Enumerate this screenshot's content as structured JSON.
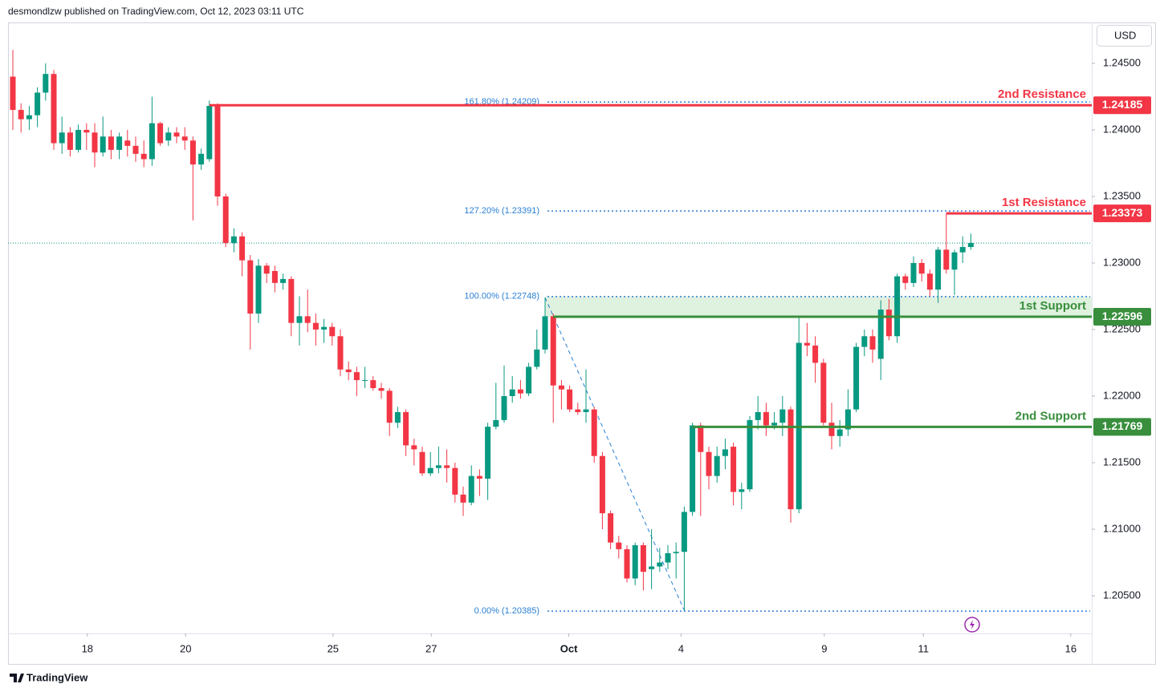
{
  "header": {
    "publisher": "desmondlzw published on TradingView.com, Oct 12, 2023 03:11 UTC",
    "brand": "TradingView"
  },
  "chart_data": {
    "type": "candlestick",
    "currency": "USD",
    "up_color": "#089981",
    "down_color": "#f23645",
    "ylim": [
      1.20217,
      1.24807
    ],
    "yticks": [
      {
        "value": 1.205,
        "label": "1.20500"
      },
      {
        "value": 1.21,
        "label": "1.21000"
      },
      {
        "value": 1.215,
        "label": "1.21500"
      },
      {
        "value": 1.22,
        "label": "1.22000"
      },
      {
        "value": 1.225,
        "label": "1.22500"
      },
      {
        "value": 1.23,
        "label": "1.23000"
      },
      {
        "value": 1.235,
        "label": "1.23500"
      },
      {
        "value": 1.24,
        "label": "1.24000"
      },
      {
        "value": 1.245,
        "label": "1.24500"
      }
    ],
    "xticks": [
      {
        "value": 9.1,
        "label": "18"
      },
      {
        "value": 21.1,
        "label": "20"
      },
      {
        "value": 39.1,
        "label": "25"
      },
      {
        "value": 51.1,
        "label": "27"
      },
      {
        "value": 67.9,
        "label": "Oct"
      },
      {
        "value": 81.6,
        "label": "4"
      },
      {
        "value": 99.1,
        "label": "9"
      },
      {
        "value": 111.2,
        "label": "11"
      },
      {
        "value": 129.2,
        "label": "16"
      }
    ],
    "open": [
      1.244,
      1.2415,
      1.2408,
      1.2411,
      1.2428,
      1.2442,
      1.239,
      1.2398,
      1.2385,
      1.24,
      1.2398,
      1.2383,
      1.2395,
      1.2385,
      1.2392,
      1.2388,
      1.2382,
      1.2378,
      1.2405,
      1.2392,
      1.2398,
      1.2395,
      1.2392,
      1.2374,
      1.2378,
      1.2418,
      1.235,
      1.2315,
      1.232,
      1.2302,
      1.2262,
      1.2298,
      1.2294,
      1.2285,
      1.2288,
      1.2255,
      1.226,
      1.2255,
      1.225,
      1.2252,
      1.2245,
      1.222,
      1.2218,
      1.2212,
      1.2212,
      1.2206,
      1.2204,
      1.218,
      1.2188,
      1.2163,
      1.2158,
      1.2142,
      1.2146,
      1.2148,
      1.2146,
      1.2126,
      1.212,
      1.214,
      1.2138,
      1.2177,
      1.2182,
      1.22,
      1.2205,
      1.2202,
      1.2222,
      1.2235,
      1.226,
      1.2208,
      1.2205,
      1.219,
      1.2188,
      1.219,
      1.2155,
      1.2112,
      1.209,
      1.2085,
      1.2063,
      1.2088,
      1.207,
      1.2072,
      1.2075,
      1.2082,
      1.2083,
      1.2113,
      1.2178,
      1.2158,
      1.214,
      1.2155,
      1.2162,
      1.2128,
      1.213,
      1.2182,
      1.2188,
      1.2178,
      1.218,
      1.219,
      1.2115,
      1.224,
      1.2238,
      1.2225,
      1.218,
      1.217,
      1.2175,
      1.219,
      1.2237,
      1.2245,
      1.2228,
      1.2265,
      1.2245,
      1.229,
      1.2285,
      1.23,
      1.2292,
      1.228,
      1.231,
      1.2295,
      1.2308,
      1.2312
    ],
    "high": [
      1.246,
      1.242,
      1.2418,
      1.2432,
      1.245,
      1.2445,
      1.241,
      1.2402,
      1.2404,
      1.2405,
      1.2405,
      1.241,
      1.24,
      1.2398,
      1.24,
      1.2395,
      1.2392,
      1.2425,
      1.2406,
      1.2402,
      1.2402,
      1.2402,
      1.2395,
      1.2386,
      1.2422,
      1.242,
      1.2352,
      1.2326,
      1.2323,
      1.2306,
      1.2303,
      1.23,
      1.2298,
      1.2292,
      1.229,
      1.2275,
      1.228,
      1.2262,
      1.2258,
      1.2255,
      1.225,
      1.2226,
      1.2222,
      1.2222,
      1.2215,
      1.221,
      1.2206,
      1.2192,
      1.219,
      1.2168,
      1.2162,
      1.2158,
      1.2162,
      1.216,
      1.215,
      1.2132,
      1.2148,
      1.2145,
      1.218,
      1.221,
      1.2223,
      1.2215,
      1.2212,
      1.2225,
      1.225,
      1.2274,
      1.2262,
      1.2212,
      1.2208,
      1.2195,
      1.222,
      1.2192,
      1.2158,
      1.2114,
      1.2095,
      1.2088,
      1.209,
      1.209,
      1.21,
      1.2086,
      1.2088,
      1.209,
      1.2117,
      1.218,
      1.218,
      1.2162,
      1.2162,
      1.2168,
      1.2165,
      1.2135,
      1.2185,
      1.22,
      1.2195,
      1.2188,
      1.22,
      1.2192,
      1.226,
      1.2255,
      1.2245,
      1.2228,
      1.2195,
      1.2182,
      1.2205,
      1.224,
      1.225,
      1.225,
      1.2272,
      1.2273,
      1.2292,
      1.2292,
      1.2305,
      1.2303,
      1.2295,
      1.2312,
      1.2337,
      1.231,
      1.232,
      1.2322
    ],
    "low": [
      1.24,
      1.2398,
      1.24,
      1.2402,
      1.2422,
      1.2385,
      1.2382,
      1.238,
      1.2383,
      1.2385,
      1.2372,
      1.238,
      1.2378,
      1.2378,
      1.238,
      1.2376,
      1.2372,
      1.2373,
      1.2388,
      1.2388,
      1.239,
      1.2385,
      1.2332,
      1.237,
      1.2376,
      1.2343,
      1.2312,
      1.2308,
      1.229,
      1.2235,
      1.2255,
      1.2285,
      1.2278,
      1.228,
      1.2245,
      1.2238,
      1.2248,
      1.2238,
      1.224,
      1.2238,
      1.2215,
      1.2212,
      1.22,
      1.2206,
      1.2204,
      1.2198,
      1.217,
      1.2176,
      1.2155,
      1.2148,
      1.214,
      1.214,
      1.2142,
      1.2135,
      1.212,
      1.211,
      1.2118,
      1.2125,
      1.2122,
      1.2175,
      1.218,
      1.2195,
      1.2198,
      1.22,
      1.222,
      1.2232,
      1.218,
      1.219,
      1.2188,
      1.2186,
      1.218,
      1.215,
      1.21,
      1.2085,
      1.2078,
      1.206,
      1.2058,
      1.2054,
      1.2055,
      1.2068,
      1.207,
      1.2063,
      1.2039,
      1.211,
      1.211,
      1.213,
      1.2135,
      1.2145,
      1.2118,
      1.2115,
      1.2128,
      1.2175,
      1.217,
      1.2175,
      1.217,
      1.2105,
      1.2112,
      1.223,
      1.221,
      1.2178,
      1.216,
      1.2162,
      1.217,
      1.2188,
      1.223,
      1.2225,
      1.2212,
      1.2242,
      1.224,
      1.228,
      1.2282,
      1.2286,
      1.2275,
      1.227,
      1.2292,
      1.2276,
      1.23,
      1.231
    ],
    "close": [
      1.2415,
      1.2408,
      1.2411,
      1.2428,
      1.2442,
      1.239,
      1.2398,
      1.2385,
      1.24,
      1.2398,
      1.2383,
      1.2395,
      1.2385,
      1.2395,
      1.2388,
      1.2382,
      1.2378,
      1.2405,
      1.239,
      1.2398,
      1.2395,
      1.2392,
      1.2374,
      1.2382,
      1.2418,
      1.235,
      1.2315,
      1.232,
      1.2302,
      1.2262,
      1.2298,
      1.2292,
      1.2285,
      1.2288,
      1.2255,
      1.226,
      1.2255,
      1.225,
      1.2252,
      1.2245,
      1.222,
      1.2218,
      1.2212,
      1.2212,
      1.2206,
      1.2204,
      1.218,
      1.2188,
      1.2163,
      1.216,
      1.2142,
      1.2146,
      1.2148,
      1.2146,
      1.2126,
      1.212,
      1.214,
      1.2138,
      1.2177,
      1.2182,
      1.22,
      1.2205,
      1.2202,
      1.2222,
      1.2235,
      1.226,
      1.2208,
      1.2205,
      1.219,
      1.2188,
      1.219,
      1.2155,
      1.2112,
      1.209,
      1.2085,
      1.2063,
      1.2088,
      1.2068,
      1.2072,
      1.2075,
      1.2082,
      1.2083,
      1.2113,
      1.2178,
      1.2158,
      1.214,
      1.2155,
      1.216,
      1.2128,
      1.213,
      1.2182,
      1.2188,
      1.2178,
      1.218,
      1.219,
      1.2115,
      1.224,
      1.2238,
      1.2225,
      1.218,
      1.217,
      1.2175,
      1.219,
      1.2237,
      1.2245,
      1.2235,
      1.2265,
      1.2245,
      1.229,
      1.2285,
      1.23,
      1.2292,
      1.228,
      1.231,
      1.2295,
      1.2308,
      1.2312,
      1.2315
    ],
    "levels": [
      {
        "name": "2nd Resistance",
        "value": 1.24185,
        "color": "#f23645"
      },
      {
        "name": "1st Resistance",
        "value": 1.23373,
        "color": "#f23645"
      },
      {
        "name": "1st Support",
        "value": 1.22596,
        "color": "#388e3c"
      },
      {
        "name": "2nd Support",
        "value": 1.21769,
        "color": "#388e3c"
      }
    ],
    "fib_levels": [
      {
        "label": "161.80% (1.24209)",
        "value": 1.24209
      },
      {
        "label": "127.20% (1.23391)",
        "value": 1.23391
      },
      {
        "label": "100.00% (1.22748)",
        "value": 1.22748
      },
      {
        "label": "0.00% (1.20385)",
        "value": 1.20385
      }
    ],
    "fib_color": "#2a7fd4"
  }
}
